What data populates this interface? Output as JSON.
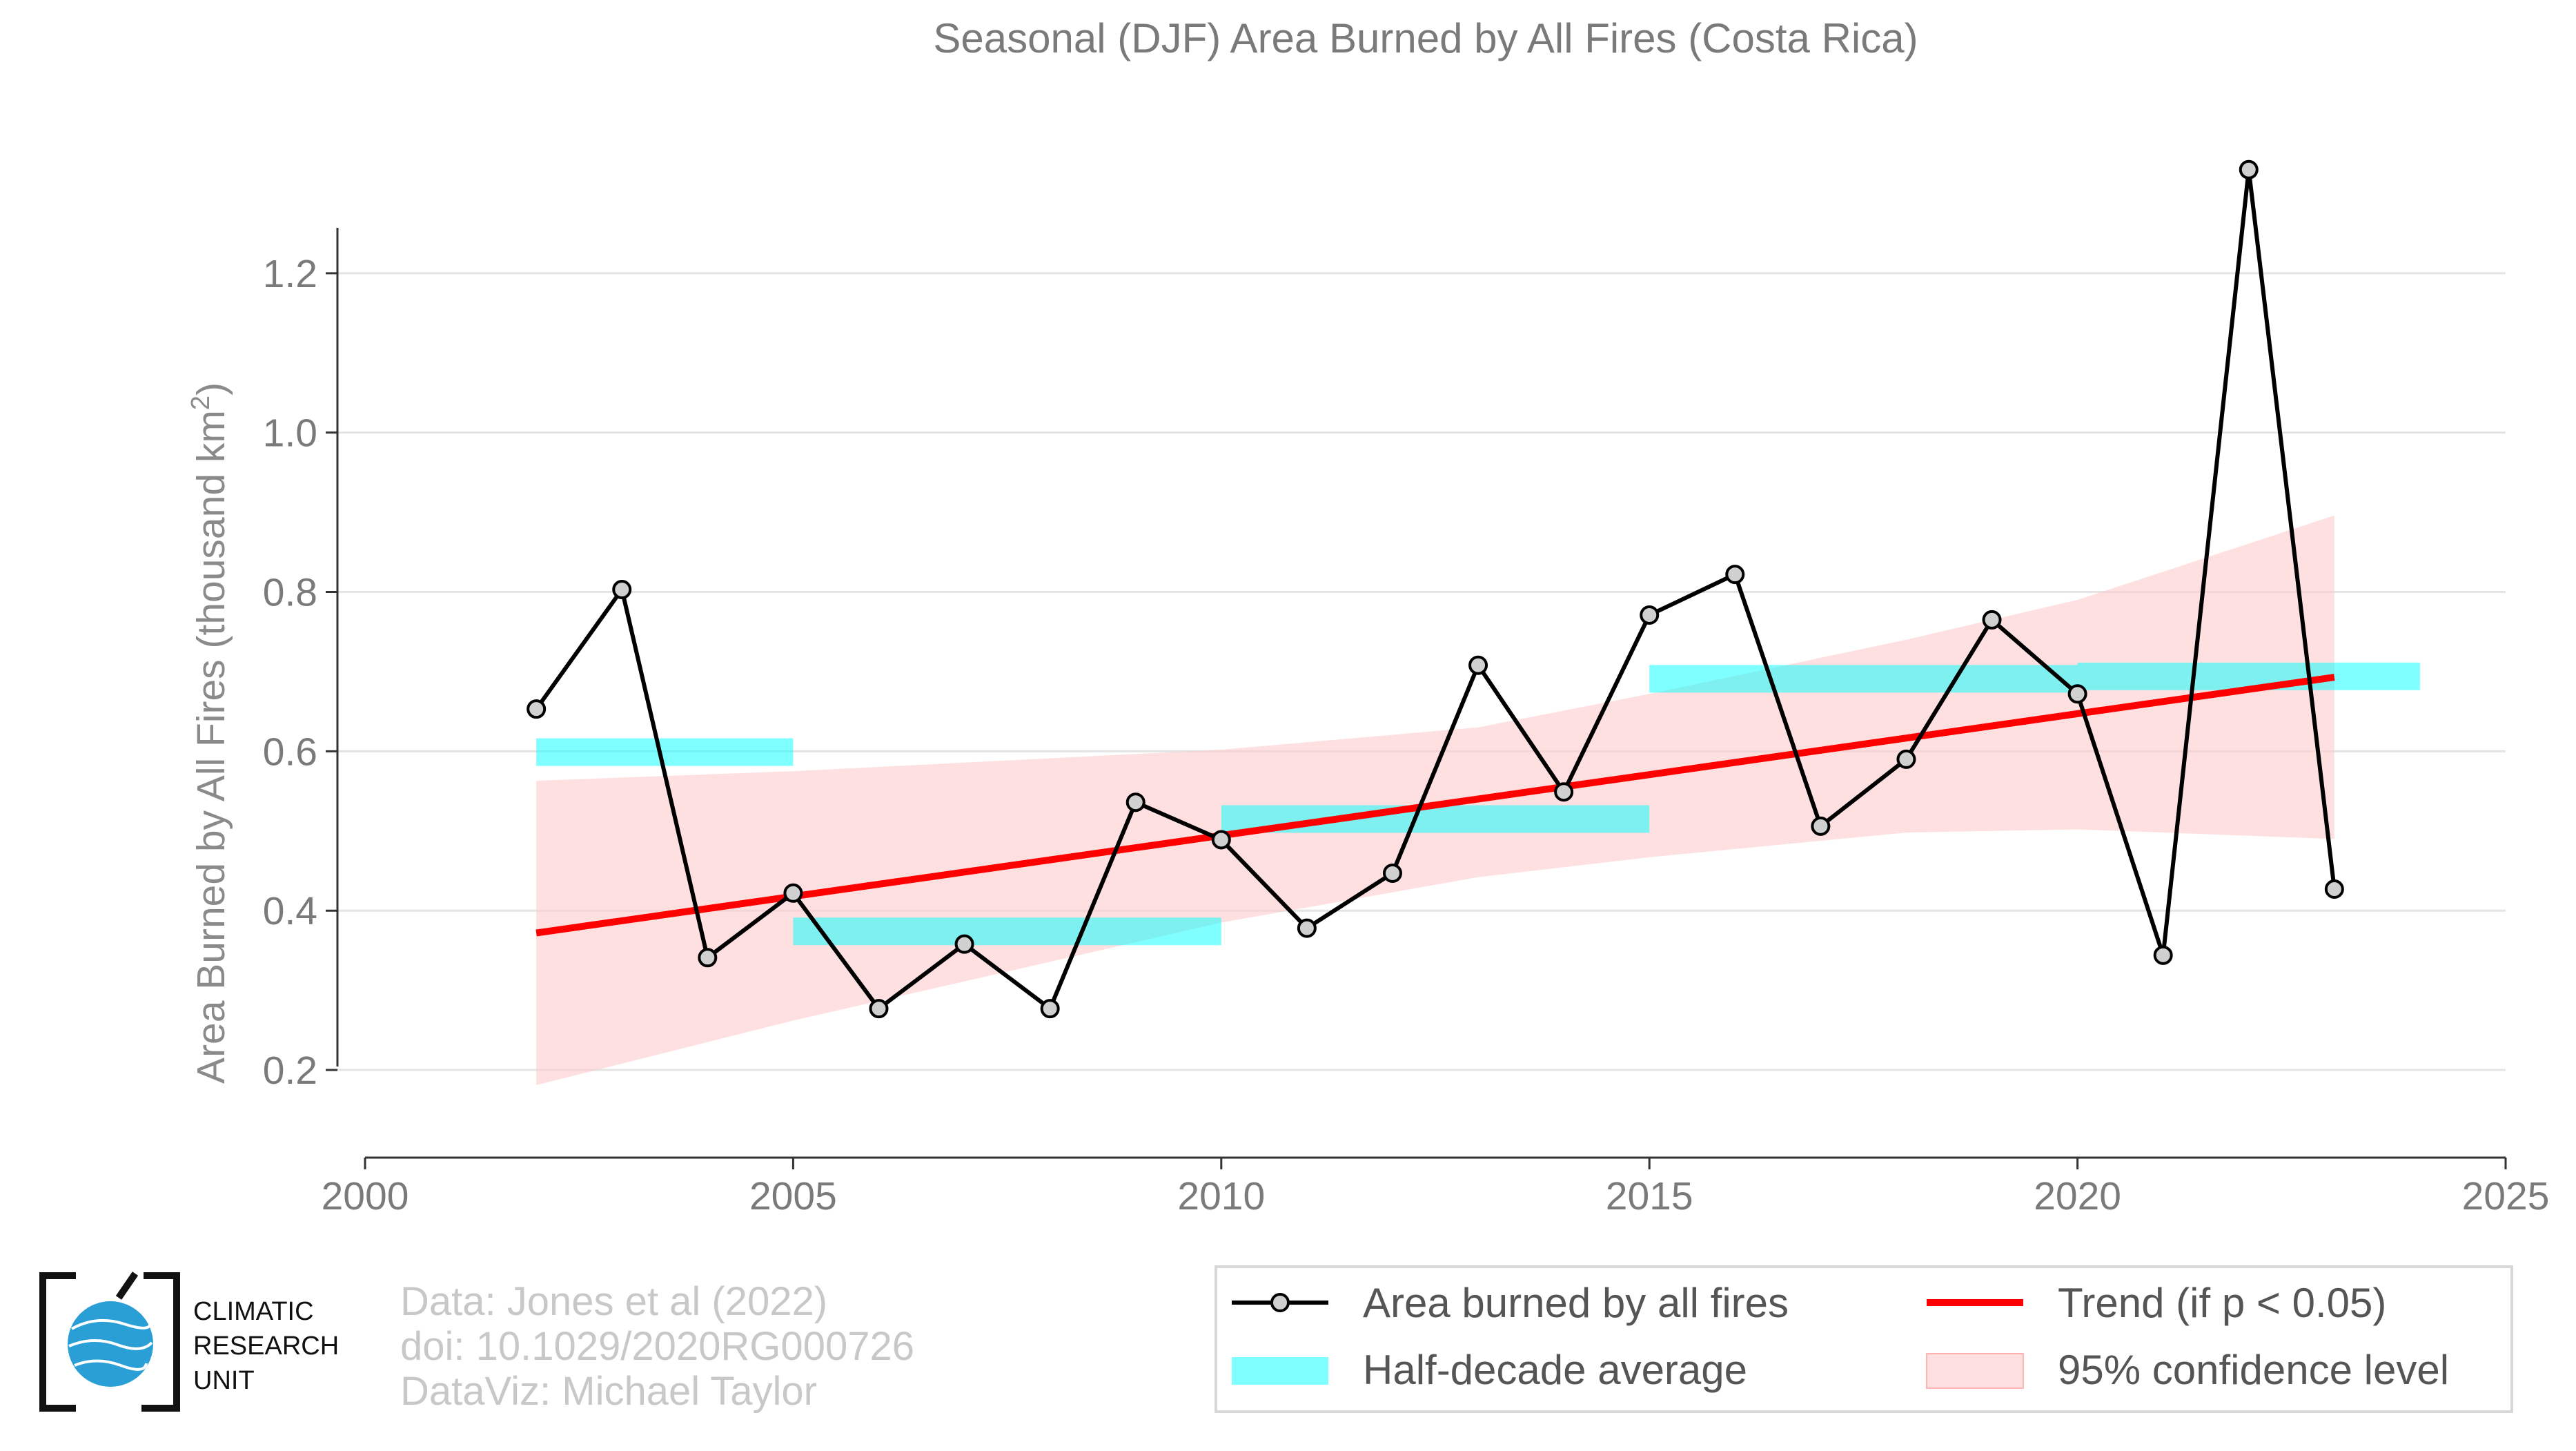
{
  "chart_data": {
    "type": "line",
    "title": "Seasonal (DJF) Area Burned by All Fires (Costa Rica)",
    "ylabel": "Area Burned by All Fires (thousand km",
    "ylabel_sup": "2",
    "ylabel_close": ")",
    "xlabel": "",
    "xlim": [
      2000,
      2025
    ],
    "ylim": [
      0.09,
      1.4
    ],
    "xticks": [
      2000,
      2005,
      2010,
      2015,
      2020,
      2025
    ],
    "xtick_labels": [
      "2000",
      "2005",
      "2010",
      "2015",
      "2020",
      "2025"
    ],
    "yticks": [
      0.2,
      0.4,
      0.6,
      0.8,
      1.0,
      1.2
    ],
    "ytick_labels": [
      "0.2",
      "0.4",
      "0.6",
      "0.8",
      "1.0",
      "1.2"
    ],
    "grid": "horizontal",
    "series": [
      {
        "name": "Area burned by all fires",
        "color": "#000000",
        "marker_fill": "#d0d0d0",
        "x": [
          2002,
          2003,
          2004,
          2005,
          2006,
          2007,
          2008,
          2009,
          2010,
          2011,
          2012,
          2013,
          2014,
          2015,
          2016,
          2017,
          2018,
          2019,
          2020,
          2021,
          2022,
          2023
        ],
        "y": [
          0.653,
          0.803,
          0.341,
          0.422,
          0.277,
          0.358,
          0.277,
          0.536,
          0.489,
          0.378,
          0.447,
          0.708,
          0.549,
          0.771,
          0.822,
          0.506,
          0.59,
          0.765,
          0.672,
          0.344,
          1.33,
          0.427
        ]
      }
    ],
    "half_decade_average": {
      "name": "Half-decade average",
      "color": "#00ffff",
      "segments": [
        {
          "x0": 2002,
          "x1": 2005,
          "y": 0.599
        },
        {
          "x0": 2005,
          "x1": 2010,
          "y": 0.374
        },
        {
          "x0": 2010,
          "x1": 2015,
          "y": 0.515
        },
        {
          "x0": 2015,
          "x1": 2020,
          "y": 0.691
        },
        {
          "x0": 2020,
          "x1": 2024,
          "y": 0.694
        }
      ]
    },
    "trend": {
      "name": "Trend (if p < 0.05)",
      "color": "#ff0000",
      "x": [
        2002,
        2023
      ],
      "y": [
        0.372,
        0.693
      ]
    },
    "confidence": {
      "name": "95% confidence level",
      "color": "#ffcccc",
      "x": [
        2002,
        2005,
        2010,
        2013,
        2015,
        2018,
        2020,
        2023
      ],
      "upper": [
        0.563,
        0.575,
        0.602,
        0.63,
        0.672,
        0.74,
        0.79,
        0.896
      ],
      "lower": [
        0.181,
        0.262,
        0.385,
        0.442,
        0.467,
        0.498,
        0.502,
        0.49
      ]
    },
    "legend": {
      "placement": "bottom-right",
      "entries": [
        "Area burned by all fires",
        "Trend (if p < 0.05)",
        "Half-decade average",
        "95% confidence level"
      ]
    }
  },
  "credits": {
    "line1": "Data: Jones et al (2022)",
    "line2": "doi: 10.1029/2020RG000726",
    "line3": "DataViz: Michael Taylor"
  },
  "logo": {
    "line1": "CLIMATIC",
    "line2": "RESEARCH",
    "line3": "UNIT"
  }
}
